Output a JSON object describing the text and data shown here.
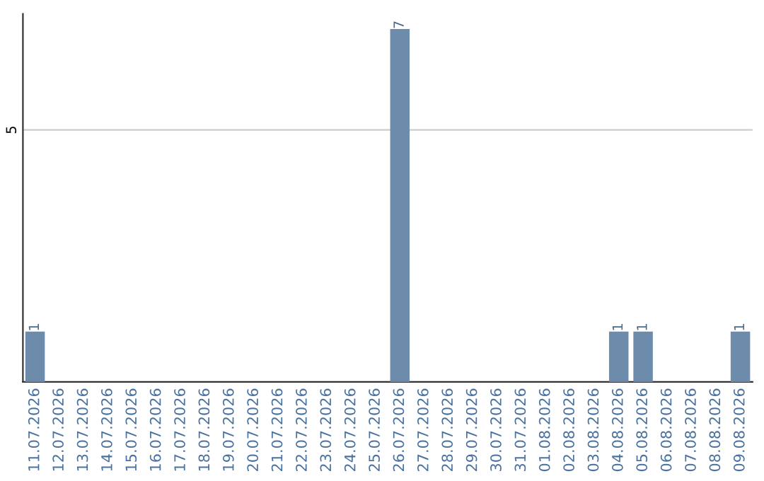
{
  "chart_data": {
    "type": "bar",
    "categories": [
      "11.07.2026",
      "12.07.2026",
      "13.07.2026",
      "14.07.2026",
      "15.07.2026",
      "16.07.2026",
      "17.07.2026",
      "18.07.2026",
      "19.07.2026",
      "20.07.2026",
      "21.07.2026",
      "22.07.2026",
      "23.07.2026",
      "24.07.2026",
      "25.07.2026",
      "26.07.2026",
      "27.07.2026",
      "28.07.2026",
      "29.07.2026",
      "30.07.2026",
      "31.07.2026",
      "01.08.2026",
      "02.08.2026",
      "03.08.2026",
      "04.08.2026",
      "05.08.2026",
      "06.08.2026",
      "07.08.2026",
      "08.08.2026",
      "09.08.2026"
    ],
    "values": [
      1,
      0,
      0,
      0,
      0,
      0,
      0,
      0,
      0,
      0,
      0,
      0,
      0,
      0,
      0,
      7,
      0,
      0,
      0,
      0,
      0,
      0,
      0,
      0,
      1,
      1,
      0,
      0,
      0,
      1
    ],
    "value_labels": [
      "1",
      null,
      null,
      null,
      null,
      null,
      null,
      null,
      null,
      null,
      null,
      null,
      null,
      null,
      null,
      "7",
      null,
      null,
      null,
      null,
      null,
      null,
      null,
      null,
      "1",
      "1",
      null,
      null,
      null,
      "1"
    ],
    "color": "#6d8cab",
    "ylim": [
      0,
      7.3
    ],
    "yticks": [
      5
    ],
    "grid": "y"
  }
}
